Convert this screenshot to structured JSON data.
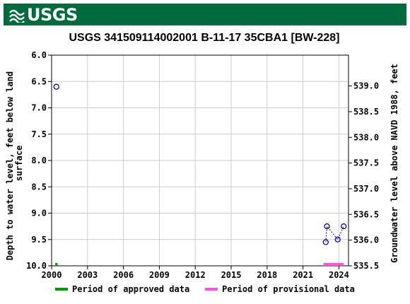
{
  "header": {
    "logo_text": "USGS",
    "logo_icon": "usgs-wave-icon",
    "color": "#006b3c"
  },
  "chart_data": {
    "type": "scatter",
    "title": "USGS 341509114002001 B-11-17 35CBA1 [BW-228]",
    "ylabel_left": "Depth to water level, feet below land surface",
    "ylabel_right": "Groundwater level above NAVD 1988, feet",
    "x_ticks": [
      "2000",
      "2003",
      "2006",
      "2009",
      "2012",
      "2015",
      "2018",
      "2021",
      "2024"
    ],
    "y_ticks_left": [
      "6.0",
      "6.5",
      "7.0",
      "7.5",
      "8.0",
      "8.5",
      "9.0",
      "9.5",
      "10.0"
    ],
    "y_ticks_right": [
      "539.0",
      "538.5",
      "538.0",
      "537.5",
      "537.0",
      "536.5",
      "536.0",
      "535.5"
    ],
    "xlim": [
      2000.0,
      2024.8
    ],
    "ylim_left": [
      6.0,
      10.0
    ],
    "ylim_right": [
      539.6,
      535.5
    ],
    "grid": true,
    "series": [
      {
        "color": "#0000aa",
        "marker": "open-circle",
        "connected": false,
        "points": [
          {
            "x": 2000.4,
            "y": 6.6
          }
        ]
      },
      {
        "color": "#0000aa",
        "marker": "open-circle",
        "connected": true,
        "line_style": "dashed",
        "points": [
          {
            "x": 2022.9,
            "y": 9.55
          },
          {
            "x": 2023.0,
            "y": 9.25
          },
          {
            "x": 2023.9,
            "y": 9.5
          },
          {
            "x": 2024.4,
            "y": 9.25
          }
        ]
      }
    ],
    "periods": [
      {
        "type": "approved",
        "color": "#009900",
        "start": 2000.3,
        "end": 2000.5
      },
      {
        "type": "provisional",
        "color": "#ff55dd",
        "start": 2022.7,
        "end": 2024.4
      }
    ],
    "legend": {
      "position": "bottom",
      "items": [
        {
          "label": "Period of approved data",
          "color": "#009900"
        },
        {
          "label": "Period of provisional data",
          "color": "#ff55dd"
        }
      ]
    }
  }
}
